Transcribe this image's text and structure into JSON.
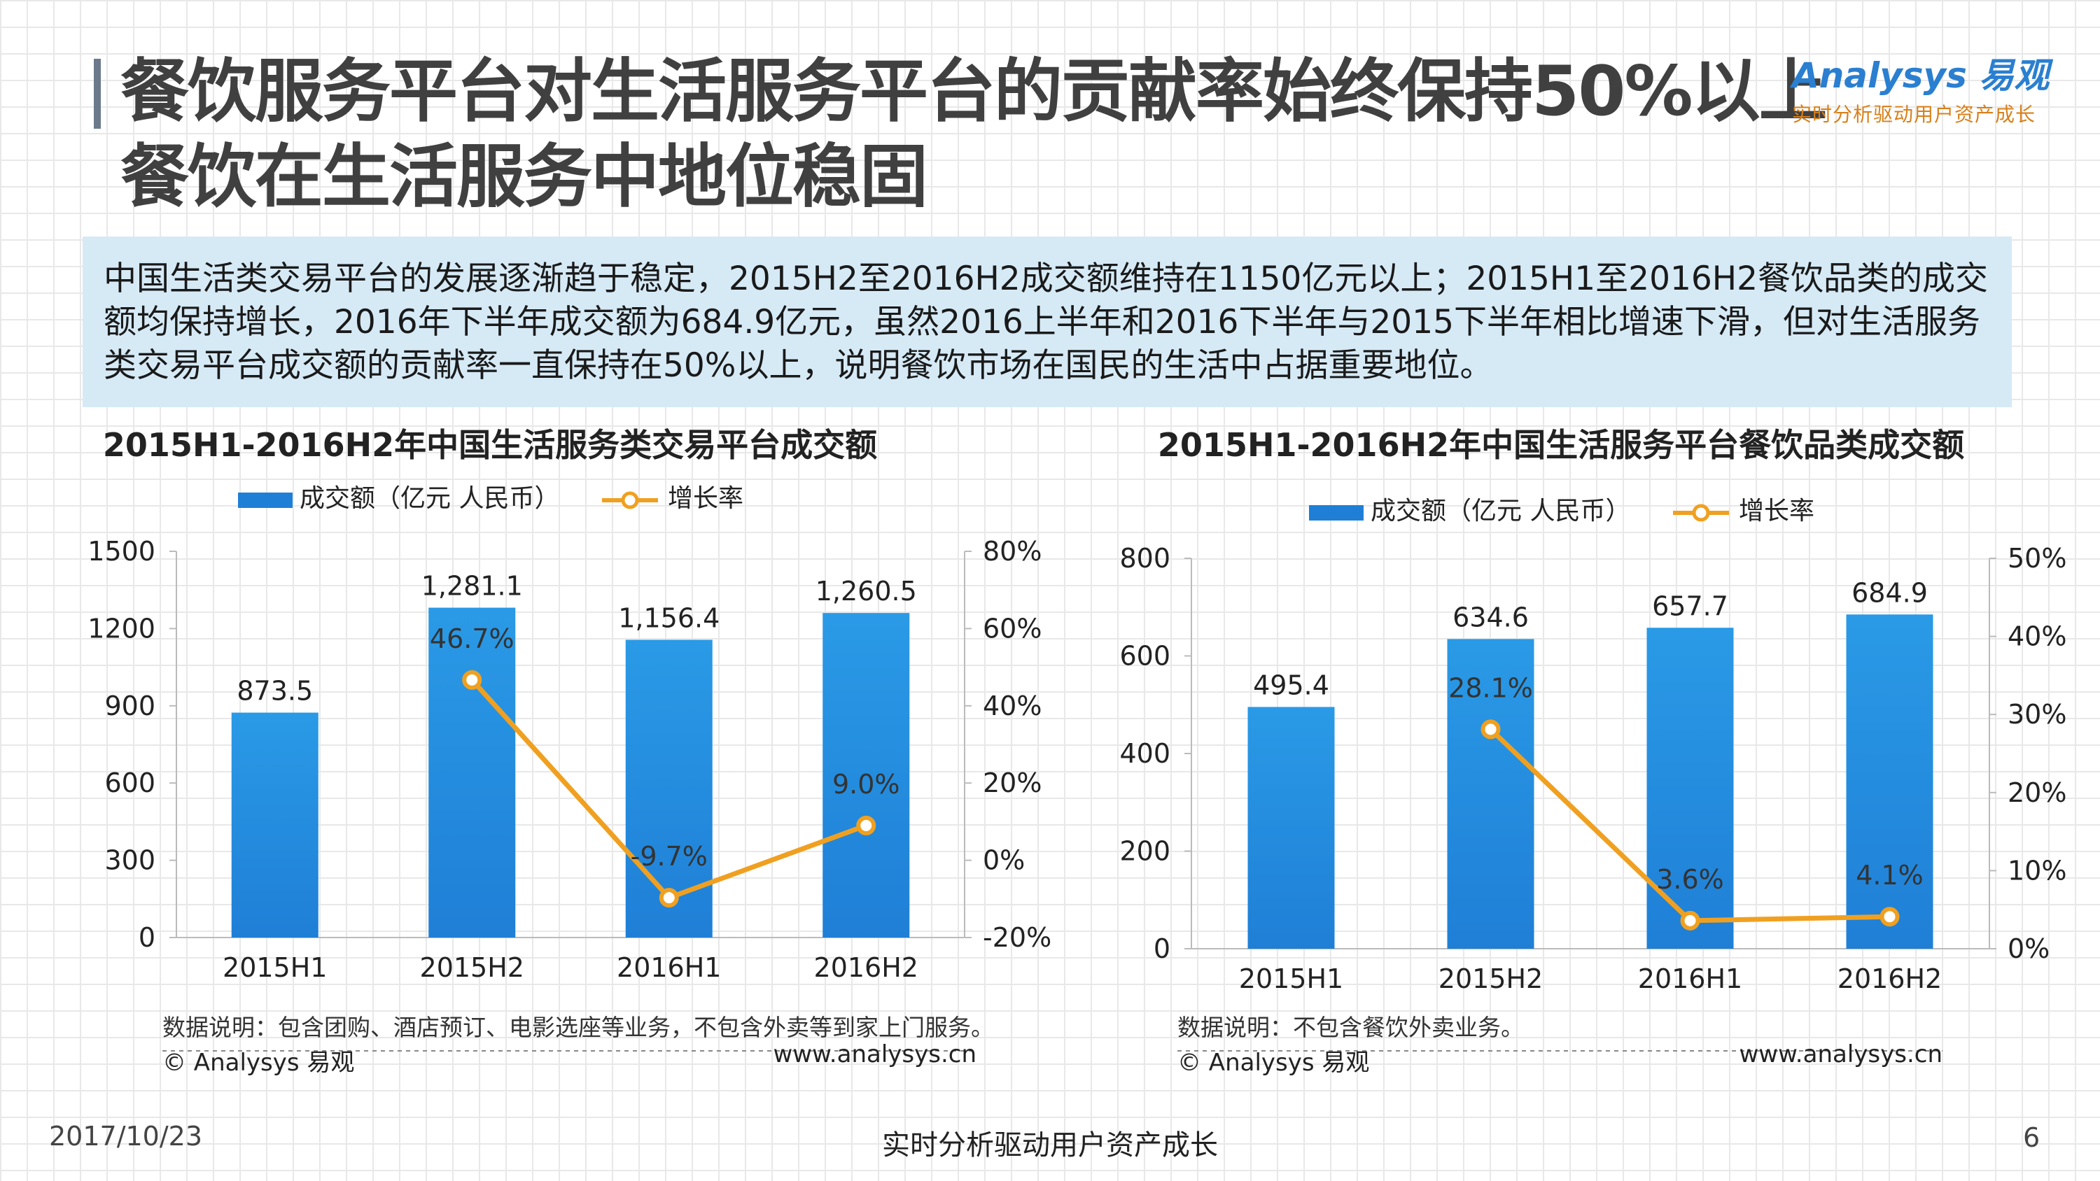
{
  "header": {
    "title": "餐饮服务平台对生活服务平台的贡献率始终保持50%以上  餐饮在生活服务中地位稳固",
    "logo_text": "Analysys 易观",
    "logo_slogan": "实时分析驱动用户资产成长"
  },
  "summary": "中国生活类交易平台的发展逐渐趋于稳定，2015H2至2016H2成交额维持在1150亿元以上；2015H1至2016H2餐饮品类的成交额均保持增长，2016年下半年成交额为684.9亿元，虽然2016上半年和2016下半年与2015下半年相比增速下滑，但对生活服务类交易平台成交额的贡献率一直保持在50%以上，说明餐饮市场在国民的生活中占据重要地位。",
  "colors": {
    "bar": "#1f7fd6",
    "bar_light": "#2a9ae6",
    "line": "#f0a020",
    "accent_title": "#404040"
  },
  "chart_data": [
    {
      "type": "bar",
      "title": "2015H1-2016H2年中国生活服务类交易平台成交额",
      "categories": [
        "2015H1",
        "2015H2",
        "2016H1",
        "2016H2"
      ],
      "series": [
        {
          "name": "成交额（亿元 人民币）",
          "type": "bar",
          "axis": "left",
          "values": [
            873.5,
            1281.1,
            1156.4,
            1260.5
          ],
          "labels": [
            "873.5",
            "1,281.1",
            "1,156.4",
            "1,260.5"
          ]
        },
        {
          "name": "增长率",
          "type": "line",
          "axis": "right",
          "values": [
            null,
            46.7,
            -9.7,
            9.0
          ],
          "labels": [
            "",
            "46.7%",
            "-9.7%",
            "9.0%"
          ]
        }
      ],
      "y_left": {
        "min": 0,
        "max": 1500,
        "ticks": [
          0,
          300,
          600,
          900,
          1200,
          1500
        ],
        "tick_labels": [
          "0",
          "300",
          "600",
          "900",
          "1200",
          "1500"
        ]
      },
      "y_right": {
        "min": -20,
        "max": 80,
        "ticks": [
          -20,
          0,
          20,
          40,
          60,
          80
        ],
        "tick_labels": [
          "-20%",
          "0%",
          "20%",
          "40%",
          "60%",
          "80%"
        ]
      },
      "note": "数据说明：包含团购、酒店预订、电影选座等业务，不包含外卖等到家上门服务。",
      "copyright": "© Analysys 易观",
      "website": "www.analysys.cn",
      "legend_position": "top"
    },
    {
      "type": "bar",
      "title": "2015H1-2016H2年中国生活服务平台餐饮品类成交额",
      "categories": [
        "2015H1",
        "2015H2",
        "2016H1",
        "2016H2"
      ],
      "series": [
        {
          "name": "成交额（亿元 人民币）",
          "type": "bar",
          "axis": "left",
          "values": [
            495.4,
            634.6,
            657.7,
            684.9
          ],
          "labels": [
            "495.4",
            "634.6",
            "657.7",
            "684.9"
          ]
        },
        {
          "name": "增长率",
          "type": "line",
          "axis": "right",
          "values": [
            null,
            28.1,
            3.6,
            4.1
          ],
          "labels": [
            "",
            "28.1%",
            "3.6%",
            "4.1%"
          ]
        }
      ],
      "y_left": {
        "min": 0,
        "max": 800,
        "ticks": [
          0,
          200,
          400,
          600,
          800
        ],
        "tick_labels": [
          "0",
          "200",
          "400",
          "600",
          "800"
        ]
      },
      "y_right": {
        "min": 0,
        "max": 50,
        "ticks": [
          0,
          10,
          20,
          30,
          40,
          50
        ],
        "tick_labels": [
          "0%",
          "10%",
          "20%",
          "30%",
          "40%",
          "50%"
        ]
      },
      "note": "数据说明：不包含餐饮外卖业务。",
      "copyright": "© Analysys 易观",
      "website": "www.analysys.cn",
      "legend_position": "top"
    }
  ],
  "footer": {
    "date": "2017/10/23",
    "slogan": "实时分析驱动用户资产成长",
    "page": "6"
  }
}
